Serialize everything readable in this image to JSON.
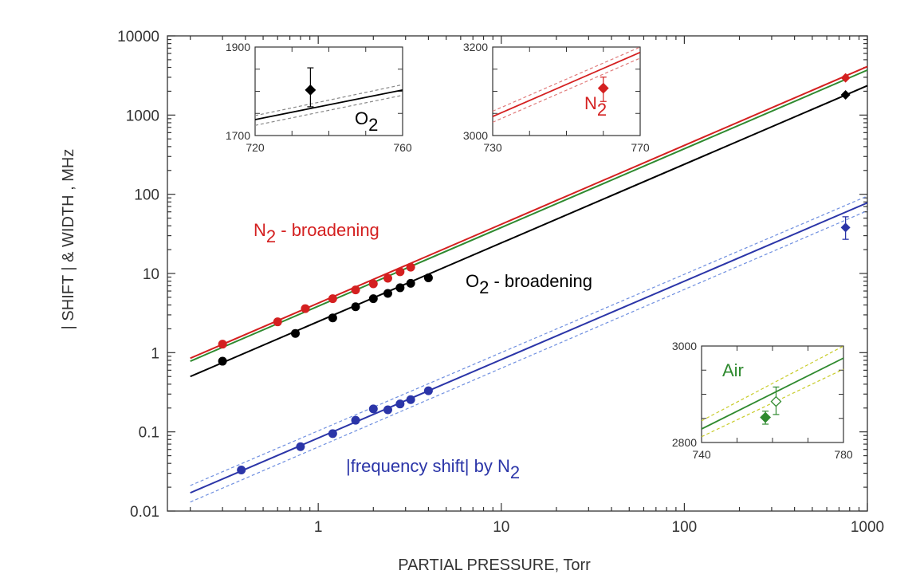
{
  "chart_data": {
    "type": "scatter",
    "xlabel": "PARTIAL PRESSURE, Torr",
    "ylabel": "| SHIFT |  & WIDTH ,  MHz",
    "xscale": "log",
    "yscale": "log",
    "xlim": [
      0.15,
      1000
    ],
    "ylim": [
      0.01,
      10000
    ],
    "x_ticks": [
      "1",
      "10",
      "100",
      "1000"
    ],
    "y_ticks": [
      "0.01",
      "0.1",
      "1",
      "10",
      "100",
      "1000",
      "10000"
    ],
    "grid": false,
    "annotations": {
      "n2_broadening": "N2 - broadening",
      "o2_broadening": "O2 - broadening",
      "shift_n2": "|frequency shift| by N2"
    },
    "series": [
      {
        "name": "N2 - broadening",
        "color": "#d42020",
        "marker": "circle",
        "points": [
          [
            0.3,
            1.28
          ],
          [
            0.6,
            2.45
          ],
          [
            0.85,
            3.6
          ],
          [
            1.2,
            4.8
          ],
          [
            1.6,
            6.2
          ],
          [
            2.0,
            7.4
          ],
          [
            2.4,
            8.7
          ],
          [
            2.8,
            10.5
          ],
          [
            3.2,
            12.0
          ],
          [
            760,
            2950
          ]
        ],
        "fit": [
          [
            0.2,
            0.85
          ],
          [
            1000,
            4100
          ]
        ]
      },
      {
        "name": "Air",
        "color": "#2f8a2f",
        "marker": "none",
        "points": [],
        "fit": [
          [
            0.2,
            0.78
          ],
          [
            1000,
            3700
          ]
        ]
      },
      {
        "name": "O2 - broadening",
        "color": "#000000",
        "marker": "circle",
        "points": [
          [
            0.3,
            0.78
          ],
          [
            0.75,
            1.75
          ],
          [
            1.2,
            2.75
          ],
          [
            1.6,
            3.8
          ],
          [
            2.0,
            4.8
          ],
          [
            2.4,
            5.6
          ],
          [
            2.8,
            6.6
          ],
          [
            3.2,
            7.5
          ],
          [
            4.0,
            8.8
          ],
          [
            760,
            1800
          ]
        ],
        "fit": [
          [
            0.2,
            0.5
          ],
          [
            1000,
            2350
          ]
        ]
      },
      {
        "name": "|frequency shift| by N2",
        "color": "#2b35a8",
        "marker": "circle",
        "points": [
          [
            0.38,
            0.033
          ],
          [
            0.8,
            0.065
          ],
          [
            1.2,
            0.095
          ],
          [
            1.6,
            0.14
          ],
          [
            2.0,
            0.195
          ],
          [
            2.4,
            0.19
          ],
          [
            2.8,
            0.225
          ],
          [
            3.2,
            0.255
          ],
          [
            4.0,
            0.33
          ],
          [
            760,
            38
          ]
        ],
        "error": [
          [
            760,
            27,
            52
          ]
        ],
        "fit": [
          [
            0.2,
            0.017
          ],
          [
            1000,
            78
          ]
        ],
        "fit_band": [
          [
            [
              0.2,
              0.021
            ],
            [
              1000,
              95
            ]
          ],
          [
            [
              0.2,
              0.013
            ],
            [
              1000,
              62
            ]
          ]
        ]
      }
    ],
    "insets": [
      {
        "label": "O2",
        "xlim": [
          720,
          760
        ],
        "ylim": [
          1700,
          1900
        ],
        "x_ticks": [
          "720",
          "760"
        ],
        "y_ticks": [
          "1700",
          "1900"
        ],
        "color": "#000000",
        "point": {
          "x": 735,
          "y": 1803,
          "err_low": 1765,
          "err_high": 1853,
          "marker": "diamond-filled"
        },
        "fit": [
          [
            720,
            1736
          ],
          [
            760,
            1803
          ]
        ],
        "band": [
          [
            [
              720,
              1745
            ],
            [
              760,
              1815
            ]
          ],
          [
            [
              720,
              1723
            ],
            [
              760,
              1791
            ]
          ]
        ]
      },
      {
        "label": "N2",
        "xlim": [
          730,
          770
        ],
        "ylim": [
          3000,
          3200
        ],
        "x_ticks": [
          "730",
          "770"
        ],
        "y_ticks": [
          "3000",
          "3200"
        ],
        "color": "#d42020",
        "point": {
          "x": 760,
          "y": 3107,
          "err_low": 3077,
          "err_high": 3132,
          "marker": "diamond-filled"
        },
        "fit": [
          [
            730,
            3043
          ],
          [
            770,
            3188
          ]
        ],
        "band": [
          [
            [
              730,
              3055
            ],
            [
              770,
              3200
            ]
          ],
          [
            [
              730,
              3030
            ],
            [
              770,
              3175
            ]
          ]
        ]
      },
      {
        "label": "Air",
        "xlim": [
          740,
          780
        ],
        "ylim": [
          2800,
          3000
        ],
        "x_ticks": [
          "740",
          "780"
        ],
        "y_ticks": [
          "2800",
          "3000"
        ],
        "color": "#2f8a2f",
        "band_color": "#c8cc2a",
        "points": [
          {
            "x": 758,
            "y": 2852,
            "err_low": 2838,
            "err_high": 2865,
            "marker": "diamond-filled"
          },
          {
            "x": 761,
            "y": 2885,
            "err_low": 2858,
            "err_high": 2915,
            "marker": "diamond-open"
          }
        ],
        "fit": [
          [
            740,
            2828
          ],
          [
            780,
            2975
          ]
        ],
        "band": [
          [
            [
              740,
              2845
            ],
            [
              780,
              3000
            ]
          ],
          [
            [
              740,
              2812
            ],
            [
              780,
              2952
            ]
          ]
        ]
      }
    ]
  }
}
